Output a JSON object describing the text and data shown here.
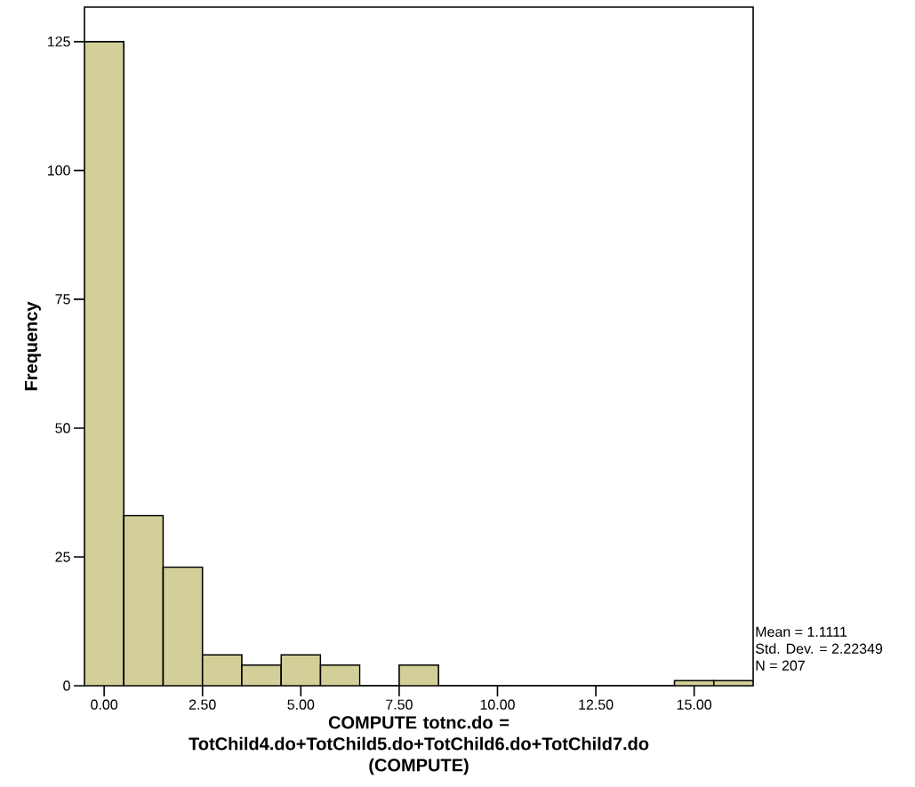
{
  "chart_data": {
    "type": "histogram",
    "xlabel": "COMPUTE  totnc.do = TotChild4.do+TotChild5.do+TotChild6.do+TotChild7.do (COMPUTE)",
    "ylabel": "Frequency",
    "bins": [
      -0.5,
      0.5,
      1.5,
      2.5,
      3.5,
      4.5,
      5.5,
      6.5,
      7.5,
      8.5,
      9.5,
      10.5,
      11.5,
      12.5,
      13.5,
      14.5,
      15.5,
      16.5
    ],
    "values": [
      125,
      33,
      23,
      6,
      4,
      6,
      4,
      0,
      4,
      0,
      0,
      0,
      0,
      0,
      0,
      1,
      1
    ],
    "color": "#d3cf98",
    "xlim": [
      -0.5,
      16.5
    ],
    "ylim": [
      0,
      131.7
    ],
    "xticks": [
      {
        "value": 0,
        "label": "0.00"
      },
      {
        "value": 2.5,
        "label": "2.50"
      },
      {
        "value": 5,
        "label": "5.00"
      },
      {
        "value": 7.5,
        "label": "7.50"
      },
      {
        "value": 10,
        "label": "10.00"
      },
      {
        "value": 12.5,
        "label": "12.50"
      },
      {
        "value": 15,
        "label": "15.00"
      }
    ],
    "yticks": [
      0,
      25,
      50,
      75,
      100,
      125
    ],
    "grid": false,
    "annotations": [
      "Mean = 1.1111",
      "Std. Dev. = 2.22349",
      "N = 207"
    ]
  }
}
